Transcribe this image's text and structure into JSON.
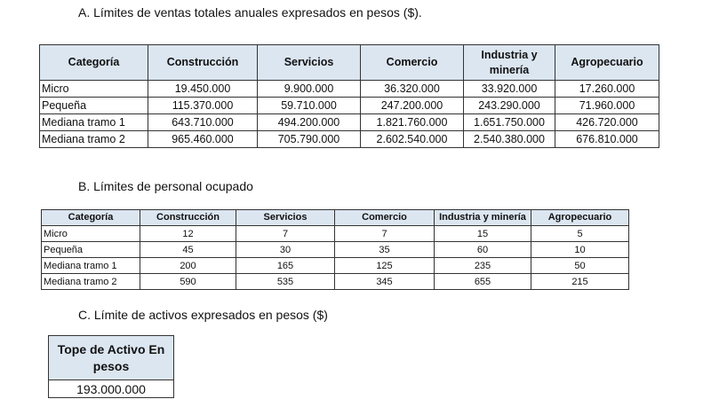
{
  "sections": [
    {
      "title": "A. Límites de ventas totales anuales expresados en pesos ($).",
      "table": {
        "header": [
          "Categoría",
          "Construcción",
          "Servicios",
          "Comercio",
          "Industria y minería",
          "Agropecuario"
        ],
        "rows": [
          [
            "Micro",
            "19.450.000",
            "9.900.000",
            "36.320.000",
            "33.920.000",
            "17.260.000"
          ],
          [
            "Pequeña",
            "115.370.000",
            "59.710.000",
            "247.200.000",
            "243.290.000",
            "71.960.000"
          ],
          [
            "Mediana tramo 1",
            "643.710.000",
            "494.200.000",
            "1.821.760.000",
            "1.651.750.000",
            "426.720.000"
          ],
          [
            "Mediana tramo 2",
            "965.460.000",
            "705.790.000",
            "2.602.540.000",
            "2.540.380.000",
            "676.810.000"
          ]
        ]
      }
    },
    {
      "title": "B. Límites de personal ocupado",
      "table": {
        "header": [
          "Categoría",
          "Construcción",
          "Servicios",
          "Comercio",
          "Industria y minería",
          "Agropecuario"
        ],
        "rows": [
          [
            "Micro",
            "12",
            "7",
            "7",
            "15",
            "5"
          ],
          [
            "Pequeña",
            "45",
            "30",
            "35",
            "60",
            "10"
          ],
          [
            "Mediana tramo 1",
            "200",
            "165",
            "125",
            "235",
            "50"
          ],
          [
            "Mediana tramo 2",
            "590",
            "535",
            "345",
            "655",
            "215"
          ]
        ]
      }
    },
    {
      "title": "C. Límite de activos expresados en pesos ($)",
      "table": {
        "header": [
          "Tope de Activo En pesos"
        ],
        "rows": [
          [
            "193.000.000"
          ]
        ]
      }
    }
  ]
}
